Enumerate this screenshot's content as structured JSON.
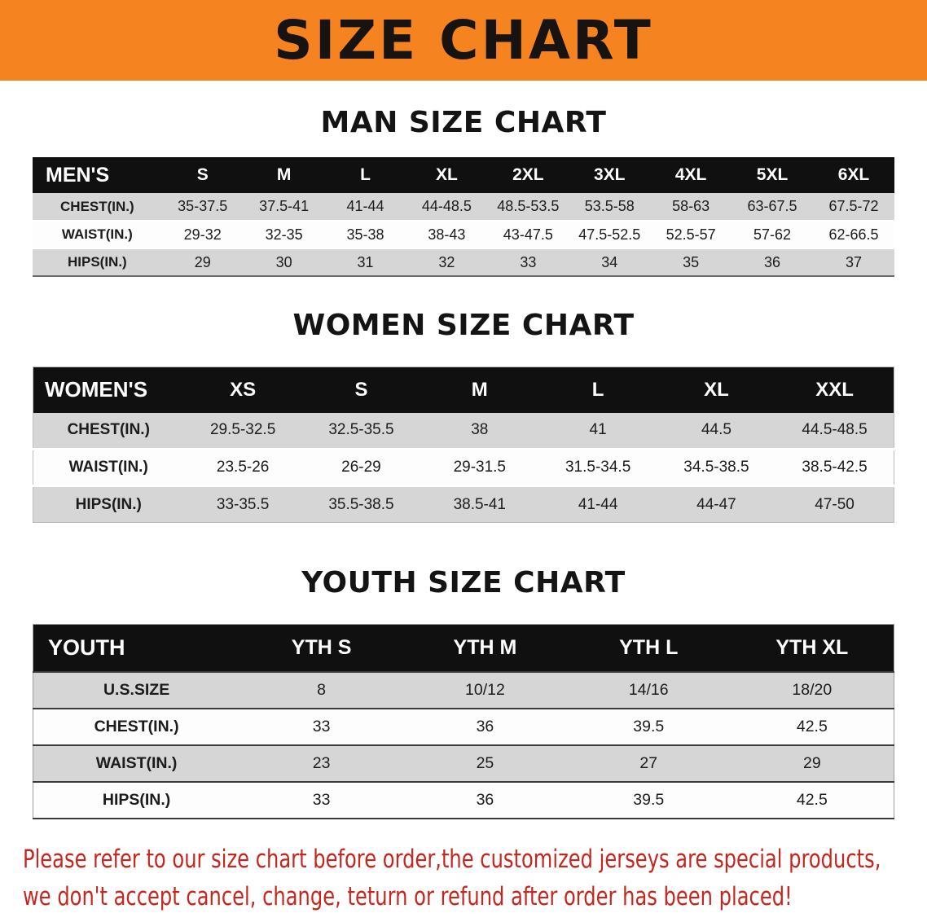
{
  "banner": {
    "title": "SIZE CHART",
    "background_color": "#F5831F",
    "text_color": "#161310"
  },
  "chart_data": [
    {
      "type": "table",
      "title": "MAN SIZE CHART",
      "header": [
        "MEN'S",
        "S",
        "M",
        "L",
        "XL",
        "2XL",
        "3XL",
        "4XL",
        "5XL",
        "6XL"
      ],
      "rows": [
        [
          "CHEST(IN.)",
          "35-37.5",
          "37.5-41",
          "41-44",
          "44-48.5",
          "48.5-53.5",
          "53.5-58",
          "58-63",
          "63-67.5",
          "67.5-72"
        ],
        [
          "WAIST(IN.)",
          "29-32",
          "32-35",
          "35-38",
          "38-43",
          "43-47.5",
          "47.5-52.5",
          "52.5-57",
          "57-62",
          "62-66.5"
        ],
        [
          "HIPS(IN.)",
          "29",
          "30",
          "31",
          "32",
          "33",
          "34",
          "35",
          "36",
          "37"
        ]
      ]
    },
    {
      "type": "table",
      "title": "WOMEN SIZE CHART",
      "header": [
        "WOMEN'S",
        "XS",
        "S",
        "M",
        "L",
        "XL",
        "XXL"
      ],
      "rows": [
        [
          "CHEST(IN.)",
          "29.5-32.5",
          "32.5-35.5",
          "38",
          "41",
          "44.5",
          "44.5-48.5"
        ],
        [
          "WAIST(IN.)",
          "23.5-26",
          "26-29",
          "29-31.5",
          "31.5-34.5",
          "34.5-38.5",
          "38.5-42.5"
        ],
        [
          "HIPS(IN.)",
          "33-35.5",
          "35.5-38.5",
          "38.5-41",
          "41-44",
          "44-47",
          "47-50"
        ]
      ]
    },
    {
      "type": "table",
      "title": "YOUTH SIZE CHART",
      "header": [
        "YOUTH",
        "YTH S",
        "YTH M",
        "YTH L",
        "YTH XL"
      ],
      "rows": [
        [
          "U.S.SIZE",
          "8",
          "10/12",
          "14/16",
          "18/20"
        ],
        [
          "CHEST(IN.)",
          "33",
          "36",
          "39.5",
          "42.5"
        ],
        [
          "WAIST(IN.)",
          "23",
          "25",
          "27",
          "29"
        ],
        [
          "HIPS(IN.)",
          "33",
          "36",
          "39.5",
          "42.5"
        ]
      ]
    }
  ],
  "footer": {
    "lines": [
      "Please refer to our size chart before order,the customized jerseys are special products,",
      "we don't accept cancel, change, teturn or refund after order has been placed!"
    ],
    "text_color": "#C5271F"
  }
}
